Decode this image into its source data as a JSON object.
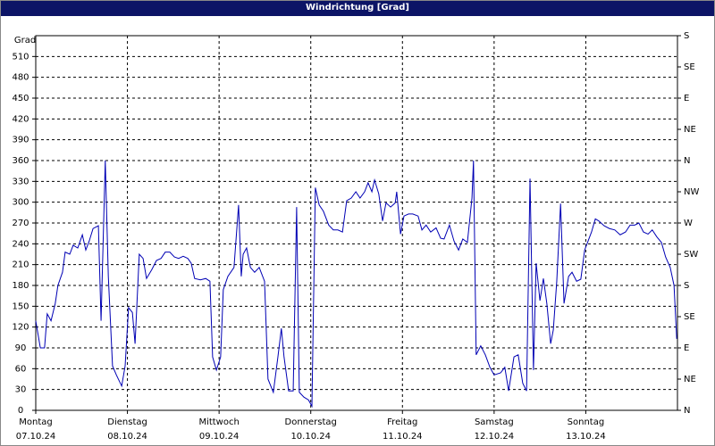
{
  "chart_data": {
    "type": "line",
    "title": "Windrichtung [Grad]",
    "y_label": "Grad",
    "xlim": [
      0,
      168
    ],
    "xticks": [
      {
        "value": 0,
        "label": "Montag",
        "date": "07.10.24"
      },
      {
        "value": 24,
        "label": "Dienstag",
        "date": "08.10.24"
      },
      {
        "value": 48,
        "label": "Mittwoch",
        "date": "09.10.24"
      },
      {
        "value": 72,
        "label": "Donnerstag",
        "date": "10.10.24"
      },
      {
        "value": 96,
        "label": "Freitag",
        "date": "11.10.24"
      },
      {
        "value": 120,
        "label": "Samstag",
        "date": "12.10.24"
      },
      {
        "value": 144,
        "label": "Sonntag",
        "date": "13.10.24"
      }
    ],
    "ylim": [
      0,
      540
    ],
    "yticks": [
      0,
      30,
      60,
      90,
      120,
      150,
      180,
      210,
      240,
      270,
      300,
      330,
      360,
      390,
      420,
      450,
      480,
      510
    ],
    "y2lim": [
      0,
      540
    ],
    "y2ticks": [
      {
        "value": 0,
        "label": "N"
      },
      {
        "value": 45,
        "label": "NE"
      },
      {
        "value": 90,
        "label": "E"
      },
      {
        "value": 135,
        "label": "SE"
      },
      {
        "value": 180,
        "label": "S"
      },
      {
        "value": 225,
        "label": "SW"
      },
      {
        "value": 270,
        "label": "W"
      },
      {
        "value": 315,
        "label": "NW"
      },
      {
        "value": 360,
        "label": "N"
      },
      {
        "value": 405,
        "label": "NE"
      },
      {
        "value": 450,
        "label": "E"
      },
      {
        "value": 495,
        "label": "SE"
      },
      {
        "value": 540,
        "label": "S"
      }
    ],
    "grid": true,
    "x": [
      0,
      1.2,
      2.3,
      3.0,
      4.0,
      5.1,
      5.8,
      7.0,
      7.7,
      8.9,
      9.8,
      11.0,
      12.2,
      13.1,
      14.0,
      15.0,
      16.4,
      17.1,
      18.2,
      19.0,
      20.1,
      21.1,
      22.5,
      23.4,
      24.3,
      25.3,
      26.0,
      27.1,
      28.1,
      29.0,
      30.4,
      31.6,
      32.8,
      33.9,
      35.1,
      36.3,
      37.4,
      38.6,
      39.8,
      40.7,
      41.6,
      43.1,
      44.5,
      45.6,
      46.3,
      47.3,
      48.4,
      49.1,
      50.3,
      51.9,
      53.1,
      53.8,
      54.3,
      55.2,
      56.2,
      57.3,
      58.5,
      59.9,
      60.8,
      62.2,
      63.4,
      64.3,
      65.0,
      66.2,
      67.4,
      68.3,
      69.0,
      70.2,
      71.4,
      72.3,
      73.2,
      74.2,
      75.3,
      76.7,
      77.9,
      79.1,
      80.3,
      81.4,
      82.6,
      83.8,
      84.9,
      86.1,
      87.0,
      88.0,
      88.7,
      89.8,
      90.8,
      91.7,
      92.9,
      94.1,
      94.5,
      95.5,
      96.4,
      97.6,
      98.7,
      100.1,
      101.1,
      102.2,
      103.4,
      104.8,
      106.0,
      106.9,
      108.3,
      109.5,
      110.7,
      111.8,
      113.0,
      114.2,
      114.6,
      115.3,
      116.5,
      117.7,
      118.9,
      120.0,
      121.7,
      122.8,
      123.8,
      125.2,
      126.3,
      127.5,
      128.5,
      129.4,
      130.3,
      131.0,
      132.0,
      132.9,
      133.8,
      134.8,
      135.5,
      136.4,
      137.4,
      138.3,
      139.5,
      140.4,
      141.6,
      142.7,
      143.7,
      144.6,
      145.5,
      146.5,
      147.4,
      148.8,
      150.2,
      151.6,
      153.0,
      154.4,
      155.6,
      156.8,
      157.9,
      159.1,
      160.3,
      161.4,
      162.6,
      163.8,
      164.9,
      166.1,
      167.1,
      167.8
    ],
    "series": [
      {
        "name": "Windrichtung",
        "color": "#0000b4",
        "values": [
          129,
          90,
          90,
          139,
          129,
          154,
          180,
          199,
          228,
          225,
          238,
          234,
          253,
          231,
          244,
          262,
          266,
          129,
          360,
          193,
          64,
          51,
          35,
          64,
          148,
          141,
          96,
          225,
          219,
          190,
          203,
          216,
          219,
          228,
          228,
          221,
          219,
          222,
          219,
          212,
          190,
          188,
          190,
          186,
          77,
          58,
          77,
          174,
          193,
          206,
          296,
          193,
          225,
          234,
          206,
          199,
          206,
          186,
          45,
          26,
          77,
          118,
          77,
          28,
          28,
          293,
          26,
          19,
          15,
          6,
          321,
          296,
          287,
          267,
          260,
          260,
          257,
          302,
          306,
          315,
          306,
          315,
          328,
          315,
          332,
          312,
          273,
          299,
          293,
          299,
          315,
          254,
          280,
          283,
          283,
          280,
          260,
          267,
          257,
          263,
          248,
          247,
          267,
          244,
          231,
          247,
          242,
          306,
          360,
          80,
          93,
          80,
          62,
          51,
          54,
          62,
          28,
          77,
          80,
          39,
          28,
          334,
          58,
          212,
          158,
          190,
          154,
          96,
          116,
          186,
          298,
          154,
          193,
          199,
          186,
          189,
          231,
          244,
          257,
          276,
          273,
          266,
          262,
          260,
          253,
          257,
          267,
          267,
          270,
          257,
          254,
          260,
          250,
          242,
          221,
          206,
          180,
          103
        ]
      }
    ]
  }
}
